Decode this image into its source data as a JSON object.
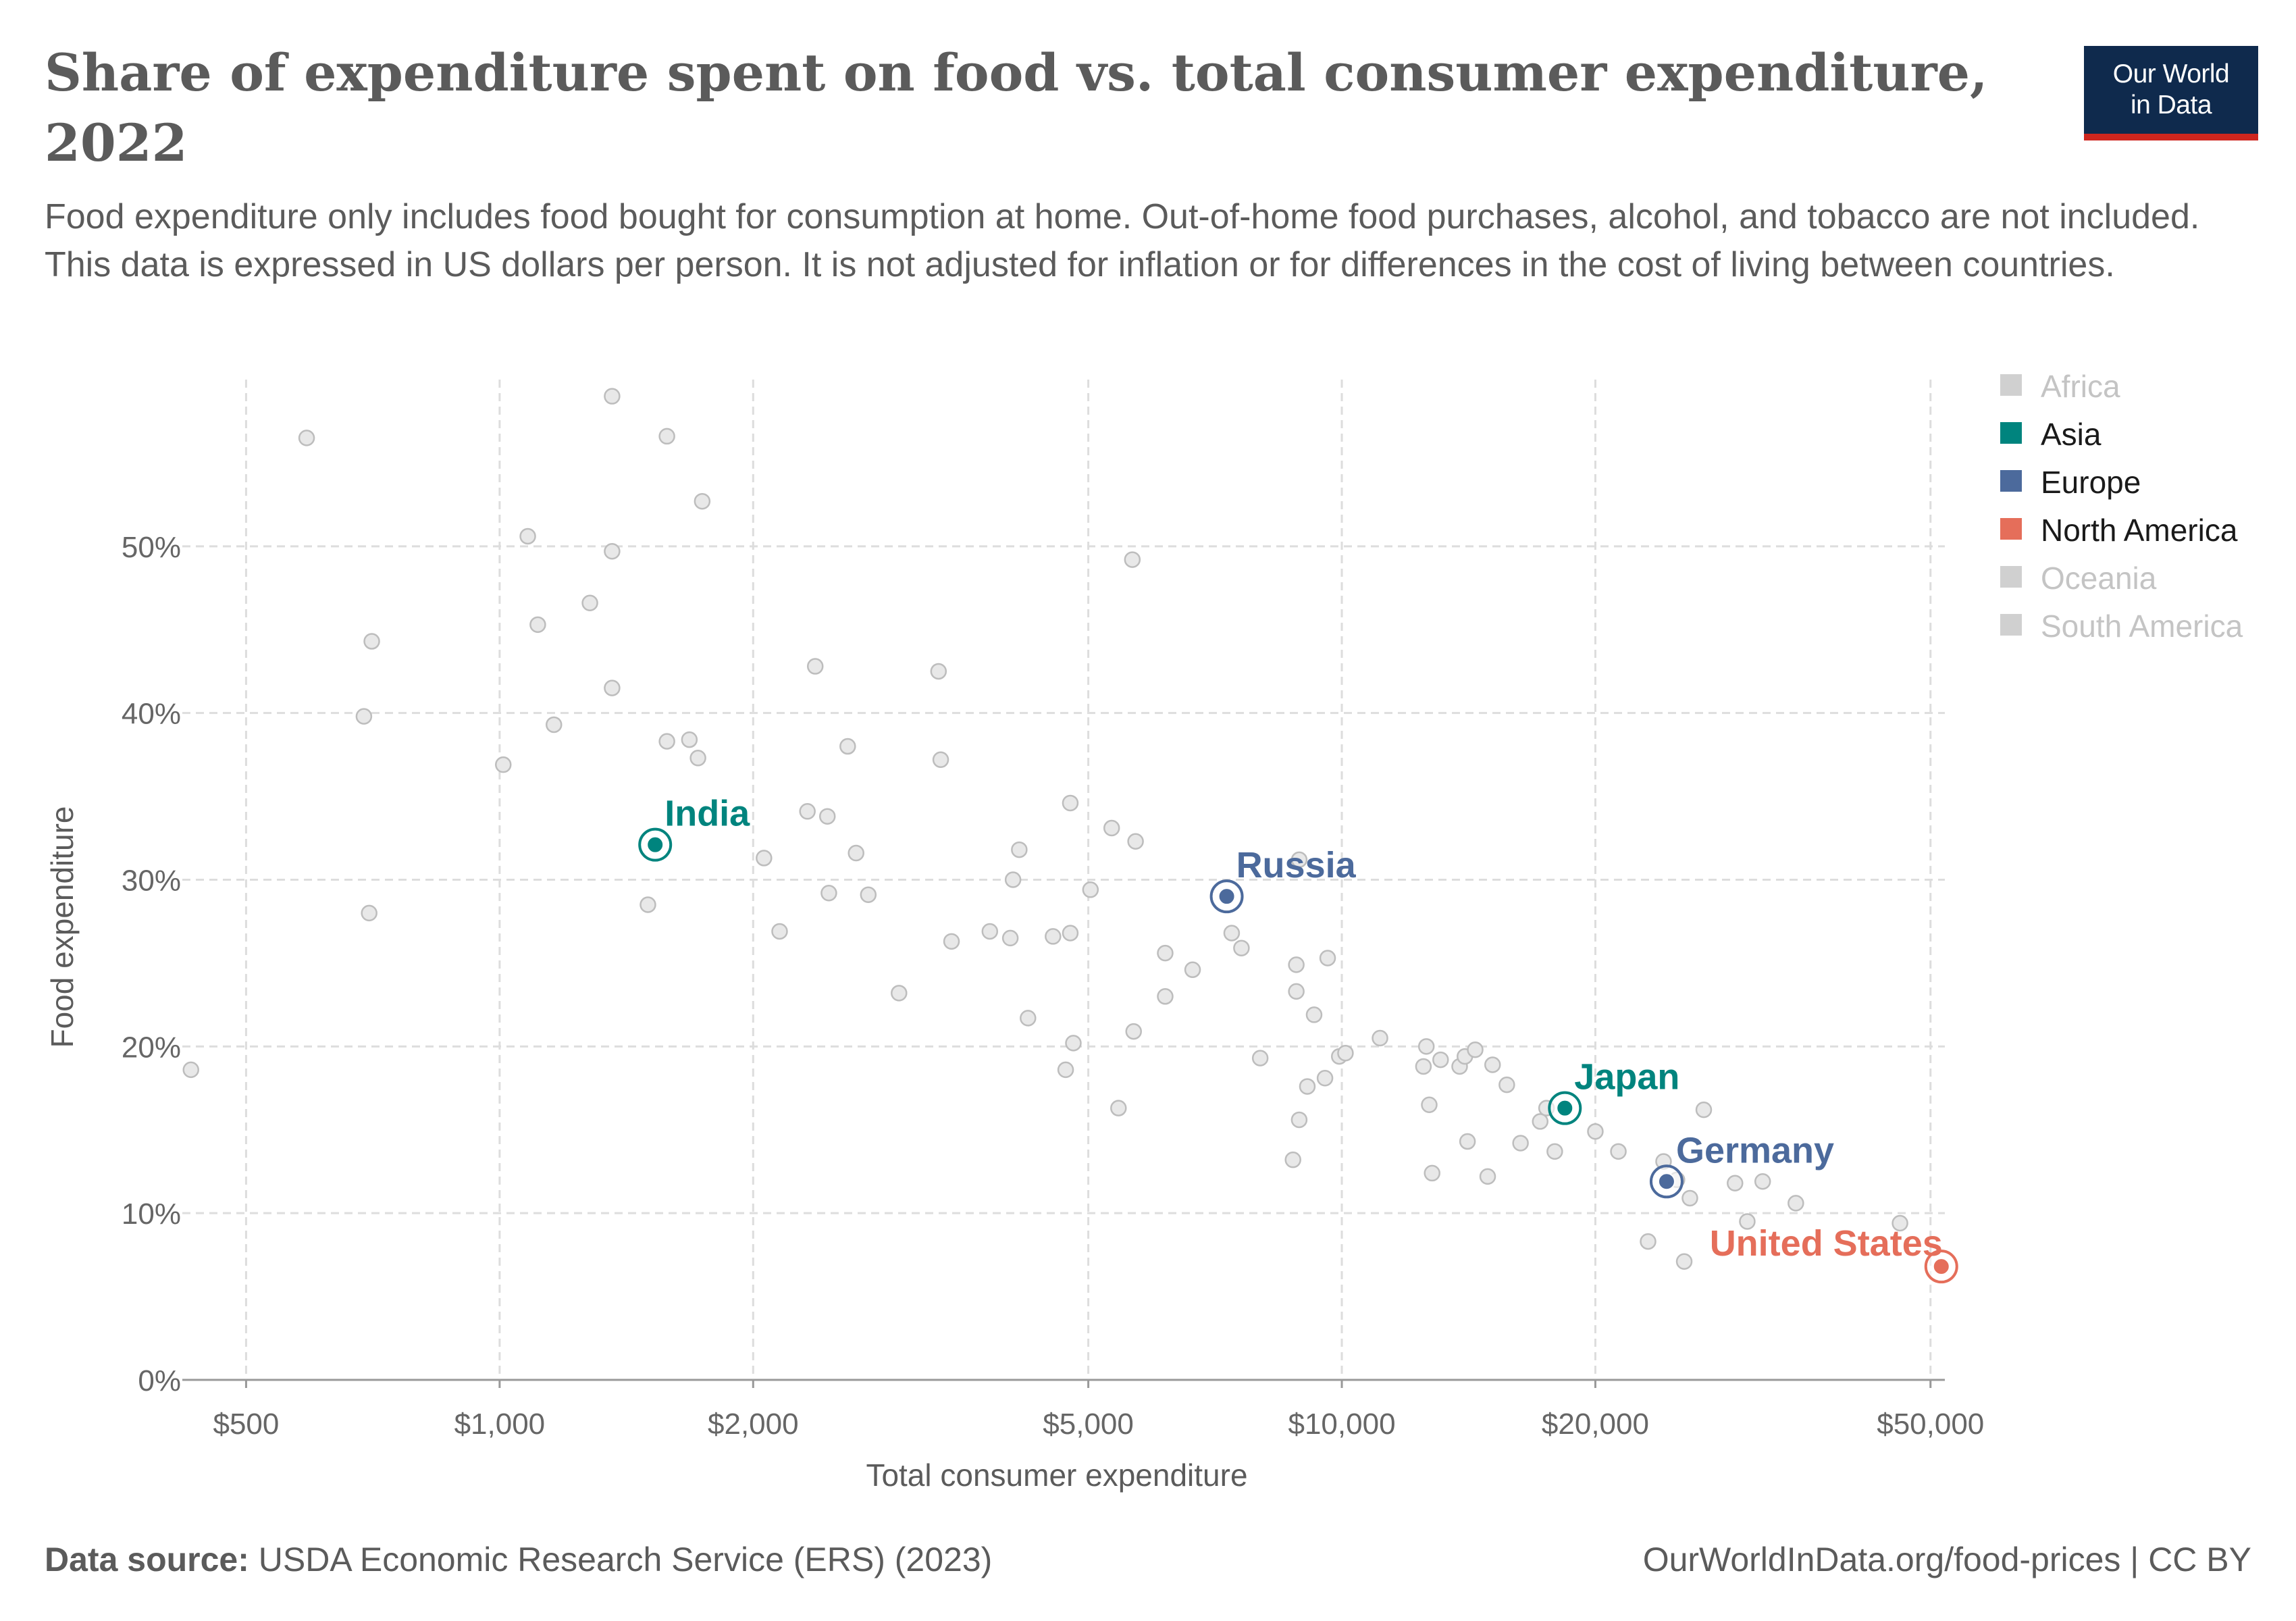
{
  "title": "Share of expenditure spent on food vs. total consumer expenditure, 2022",
  "subtitle": "Food expenditure only includes food bought for consumption at home. Out-of-home food purchases, alcohol, and tobacco are not included. This data is expressed in US dollars per person. It is not adjusted for inflation or for differences in the cost of living between countries.",
  "logo": {
    "line1": "Our World",
    "line2": "in Data"
  },
  "footer": {
    "source_label": "Data source:",
    "source_text": "USDA Economic Research Service (ERS) (2023)",
    "right": "OurWorldInData.org/food-prices | CC BY"
  },
  "colors": {
    "asia": "#00847e",
    "europe": "#4c6a9c",
    "north_america": "#e56e5a",
    "inactive": "#d0d0d0",
    "text": "#5b5b5b",
    "grid": "#dddddd"
  },
  "chart_data": {
    "type": "scatter",
    "xlabel": "Total consumer expenditure",
    "ylabel": "Food expenditure",
    "x_scale": "log",
    "xlim": [
      420,
      52000
    ],
    "ylim": [
      0,
      60
    ],
    "x_ticks": [
      {
        "value": 500,
        "label": "$500"
      },
      {
        "value": 1000,
        "label": "$1,000"
      },
      {
        "value": 2000,
        "label": "$2,000"
      },
      {
        "value": 5000,
        "label": "$5,000"
      },
      {
        "value": 10000,
        "label": "$10,000"
      },
      {
        "value": 20000,
        "label": "$20,000"
      },
      {
        "value": 50000,
        "label": "$50,000"
      }
    ],
    "y_ticks": [
      {
        "value": 0,
        "label": "0%"
      },
      {
        "value": 10,
        "label": "10%"
      },
      {
        "value": 20,
        "label": "20%"
      },
      {
        "value": 30,
        "label": "30%"
      },
      {
        "value": 40,
        "label": "40%"
      },
      {
        "value": 50,
        "label": "50%"
      }
    ],
    "grid": true,
    "legend_position": "right",
    "legend": [
      {
        "name": "Africa",
        "color": "#d0d0d0",
        "active": false
      },
      {
        "name": "Asia",
        "color": "#00847e",
        "active": true
      },
      {
        "name": "Europe",
        "color": "#4c6a9c",
        "active": true
      },
      {
        "name": "North America",
        "color": "#e56e5a",
        "active": true
      },
      {
        "name": "Oceania",
        "color": "#d0d0d0",
        "active": false
      },
      {
        "name": "South America",
        "color": "#d0d0d0",
        "active": false
      }
    ],
    "highlighted": [
      {
        "name": "India",
        "x": 1530,
        "y": 32.1,
        "region": "Asia",
        "color": "#00847e"
      },
      {
        "name": "Russia",
        "x": 7300,
        "y": 29.0,
        "region": "Europe",
        "color": "#4c6a9c"
      },
      {
        "name": "Japan",
        "x": 18400,
        "y": 16.3,
        "region": "Asia",
        "color": "#00847e"
      },
      {
        "name": "Germany",
        "x": 24300,
        "y": 11.9,
        "region": "Europe",
        "color": "#4c6a9c"
      },
      {
        "name": "United States",
        "x": 51500,
        "y": 6.8,
        "region": "North America",
        "color": "#e56e5a"
      }
    ],
    "background_points": [
      [
        430,
        18.6
      ],
      [
        590,
        56.5
      ],
      [
        690,
        39.8
      ],
      [
        700,
        28.0
      ],
      [
        705,
        44.3
      ],
      [
        1010,
        36.9
      ],
      [
        1080,
        50.6
      ],
      [
        1110,
        45.3
      ],
      [
        1160,
        39.3
      ],
      [
        1280,
        46.6
      ],
      [
        1360,
        41.5
      ],
      [
        1360,
        49.7
      ],
      [
        1360,
        59.0
      ],
      [
        1500,
        28.5
      ],
      [
        1580,
        56.6
      ],
      [
        1580,
        38.3
      ],
      [
        1680,
        38.4
      ],
      [
        1720,
        37.3
      ],
      [
        1740,
        52.7
      ],
      [
        2060,
        31.3
      ],
      [
        2150,
        26.9
      ],
      [
        2320,
        34.1
      ],
      [
        2370,
        42.8
      ],
      [
        2450,
        33.8
      ],
      [
        2460,
        29.2
      ],
      [
        2590,
        38.0
      ],
      [
        2650,
        31.6
      ],
      [
        2740,
        29.1
      ],
      [
        2980,
        23.2
      ],
      [
        3320,
        42.5
      ],
      [
        3340,
        37.2
      ],
      [
        3440,
        26.3
      ],
      [
        3820,
        26.9
      ],
      [
        4040,
        26.5
      ],
      [
        4070,
        30.0
      ],
      [
        4140,
        31.8
      ],
      [
        4240,
        21.7
      ],
      [
        4540,
        26.6
      ],
      [
        4700,
        18.6
      ],
      [
        4760,
        34.6
      ],
      [
        4760,
        26.8
      ],
      [
        4800,
        20.2
      ],
      [
        5030,
        29.4
      ],
      [
        5330,
        33.1
      ],
      [
        5430,
        16.3
      ],
      [
        5640,
        49.2
      ],
      [
        5660,
        20.9
      ],
      [
        5690,
        32.3
      ],
      [
        6170,
        25.6
      ],
      [
        6170,
        23.0
      ],
      [
        6650,
        24.6
      ],
      [
        7400,
        26.8
      ],
      [
        7600,
        25.9
      ],
      [
        8000,
        19.3
      ],
      [
        8750,
        13.2
      ],
      [
        8830,
        24.9
      ],
      [
        8830,
        23.3
      ],
      [
        8900,
        31.2
      ],
      [
        8900,
        15.6
      ],
      [
        9100,
        17.6
      ],
      [
        9270,
        21.9
      ],
      [
        9550,
        18.1
      ],
      [
        9620,
        25.3
      ],
      [
        9930,
        19.4
      ],
      [
        10100,
        19.6
      ],
      [
        11100,
        20.5
      ],
      [
        12500,
        18.8
      ],
      [
        12600,
        20.0
      ],
      [
        12700,
        16.5
      ],
      [
        12800,
        12.4
      ],
      [
        13100,
        19.2
      ],
      [
        13800,
        18.8
      ],
      [
        14000,
        19.4
      ],
      [
        14100,
        14.3
      ],
      [
        14400,
        19.8
      ],
      [
        14900,
        12.2
      ],
      [
        15100,
        18.9
      ],
      [
        15700,
        17.7
      ],
      [
        16300,
        14.2
      ],
      [
        17200,
        15.5
      ],
      [
        17500,
        16.3
      ],
      [
        17900,
        13.7
      ],
      [
        20000,
        14.9
      ],
      [
        21300,
        13.7
      ],
      [
        23100,
        8.3
      ],
      [
        24100,
        13.1
      ],
      [
        25000,
        12.0
      ],
      [
        25500,
        7.1
      ],
      [
        25900,
        10.9
      ],
      [
        26900,
        16.2
      ],
      [
        29300,
        11.8
      ],
      [
        30300,
        9.5
      ],
      [
        31600,
        11.9
      ],
      [
        34600,
        10.6
      ],
      [
        46000,
        9.4
      ]
    ]
  }
}
